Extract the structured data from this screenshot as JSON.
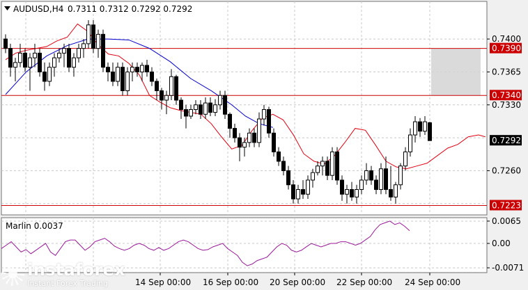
{
  "header": {
    "symbol_timeframe": "AUDUSD,H4",
    "ohlc": "0.7311 0.7312 0.7292 0.7292"
  },
  "indicator": {
    "label": "Marlin 0.0037"
  },
  "logo": {
    "brand": "instaforex",
    "tagline": "Instant Forex Trading"
  },
  "colors": {
    "background": "#ffffff",
    "page": "#f0f0f0",
    "grid": "#c8c8c8",
    "bull_candle": "#ffffff",
    "bear_candle": "#000000",
    "ma_fast": "#e0000f",
    "ma_slow": "#0000cc",
    "level_line": "#cc0000",
    "level_label_bg": "#cc0000",
    "price_label_bg": "#000000",
    "oscillator": "#9a1a9a",
    "target_box": "#d4d4d4"
  },
  "chart_data": [
    {
      "type": "candlestick",
      "title": "AUDUSD,H4",
      "ylim": [
        0.7213,
        0.744
      ],
      "x_tick_labels": [
        "14 Sep 00:00",
        "16 Sep 00:00",
        "20 Sep 00:00",
        "22 Sep 00:00",
        "24 Sep 00:00"
      ],
      "y_tick_labels": [
        "0.7400",
        "0.7365",
        "0.7330",
        "0.7260"
      ],
      "levels": [
        {
          "value": 0.739,
          "label": "0.7390"
        },
        {
          "value": 0.734,
          "label": "0.7340"
        },
        {
          "value": 0.7223,
          "label": "0.7223"
        }
      ],
      "current_price": {
        "value": 0.7292,
        "label": "0.7292"
      },
      "target_zone": {
        "from": 0.734,
        "to": 0.739
      },
      "candles": [
        [
          0.74,
          0.7405,
          0.7385,
          0.739
        ],
        [
          0.739,
          0.7395,
          0.736,
          0.737
        ],
        [
          0.737,
          0.738,
          0.7355,
          0.7375
        ],
        [
          0.7375,
          0.7395,
          0.737,
          0.7385
        ],
        [
          0.7385,
          0.739,
          0.7365,
          0.737
        ],
        [
          0.737,
          0.7385,
          0.7345,
          0.738
        ],
        [
          0.738,
          0.7395,
          0.737,
          0.7385
        ],
        [
          0.7385,
          0.739,
          0.736,
          0.7365
        ],
        [
          0.7365,
          0.7375,
          0.7345,
          0.7355
        ],
        [
          0.7355,
          0.7375,
          0.735,
          0.737
        ],
        [
          0.737,
          0.7385,
          0.736,
          0.738
        ],
        [
          0.738,
          0.739,
          0.7375,
          0.7385
        ],
        [
          0.7385,
          0.7395,
          0.737,
          0.739
        ],
        [
          0.739,
          0.7395,
          0.7365,
          0.737
        ],
        [
          0.737,
          0.7385,
          0.736,
          0.738
        ],
        [
          0.738,
          0.7395,
          0.7375,
          0.739
        ],
        [
          0.739,
          0.74,
          0.738,
          0.7395
        ],
        [
          0.7395,
          0.742,
          0.739,
          0.7415
        ],
        [
          0.7415,
          0.742,
          0.7385,
          0.739
        ],
        [
          0.739,
          0.741,
          0.738,
          0.7405
        ],
        [
          0.7405,
          0.741,
          0.7365,
          0.737
        ],
        [
          0.737,
          0.7375,
          0.7355,
          0.7365
        ],
        [
          0.7365,
          0.7375,
          0.735,
          0.7355
        ],
        [
          0.7355,
          0.7375,
          0.735,
          0.737
        ],
        [
          0.737,
          0.7375,
          0.734,
          0.7345
        ],
        [
          0.7345,
          0.737,
          0.734,
          0.7365
        ],
        [
          0.7365,
          0.7375,
          0.7355,
          0.737
        ],
        [
          0.737,
          0.7375,
          0.736,
          0.7365
        ],
        [
          0.7365,
          0.7375,
          0.7355,
          0.7372
        ],
        [
          0.7372,
          0.7378,
          0.736,
          0.7365
        ],
        [
          0.7365,
          0.737,
          0.735,
          0.7355
        ],
        [
          0.7355,
          0.7358,
          0.7335,
          0.7345
        ],
        [
          0.7345,
          0.7348,
          0.7325,
          0.7335
        ],
        [
          0.7335,
          0.7345,
          0.732,
          0.734
        ],
        [
          0.734,
          0.7368,
          0.7335,
          0.736
        ],
        [
          0.736,
          0.7362,
          0.733,
          0.7335
        ],
        [
          0.7335,
          0.7338,
          0.7315,
          0.7325
        ],
        [
          0.7325,
          0.733,
          0.7305,
          0.7318
        ],
        [
          0.7318,
          0.733,
          0.7315,
          0.7325
        ],
        [
          0.7325,
          0.7335,
          0.732,
          0.733
        ],
        [
          0.733,
          0.7335,
          0.7315,
          0.732
        ],
        [
          0.732,
          0.7338,
          0.7315,
          0.7332
        ],
        [
          0.7332,
          0.7338,
          0.7318,
          0.7322
        ],
        [
          0.7322,
          0.7336,
          0.7318,
          0.733
        ],
        [
          0.733,
          0.7345,
          0.7325,
          0.734
        ],
        [
          0.734,
          0.7345,
          0.7315,
          0.732
        ],
        [
          0.732,
          0.7322,
          0.7295,
          0.7305
        ],
        [
          0.7305,
          0.731,
          0.729,
          0.7295
        ],
        [
          0.7295,
          0.73,
          0.727,
          0.7285
        ],
        [
          0.7285,
          0.7295,
          0.7275,
          0.729
        ],
        [
          0.729,
          0.7305,
          0.7285,
          0.73
        ],
        [
          0.73,
          0.7305,
          0.7285,
          0.729
        ],
        [
          0.729,
          0.7322,
          0.7285,
          0.7315
        ],
        [
          0.7315,
          0.733,
          0.7308,
          0.7325
        ],
        [
          0.7325,
          0.7328,
          0.7295,
          0.73
        ],
        [
          0.73,
          0.7305,
          0.7275,
          0.728
        ],
        [
          0.728,
          0.7285,
          0.7265,
          0.727
        ],
        [
          0.727,
          0.7275,
          0.7255,
          0.726
        ],
        [
          0.726,
          0.7265,
          0.724,
          0.7245
        ],
        [
          0.7245,
          0.725,
          0.7225,
          0.723
        ],
        [
          0.723,
          0.7245,
          0.7225,
          0.724
        ],
        [
          0.724,
          0.725,
          0.723,
          0.7235
        ],
        [
          0.7235,
          0.7255,
          0.723,
          0.725
        ],
        [
          0.725,
          0.7262,
          0.7242,
          0.7258
        ],
        [
          0.7258,
          0.727,
          0.7255,
          0.7265
        ],
        [
          0.7265,
          0.7275,
          0.7255,
          0.727
        ],
        [
          0.727,
          0.7275,
          0.725,
          0.7255
        ],
        [
          0.7255,
          0.7285,
          0.725,
          0.728
        ],
        [
          0.728,
          0.7285,
          0.7245,
          0.725
        ],
        [
          0.725,
          0.7255,
          0.7228,
          0.7235
        ],
        [
          0.7235,
          0.7245,
          0.7225,
          0.724
        ],
        [
          0.724,
          0.7248,
          0.7228,
          0.7232
        ],
        [
          0.7232,
          0.7245,
          0.7225,
          0.724
        ],
        [
          0.724,
          0.7255,
          0.7235,
          0.725
        ],
        [
          0.725,
          0.7268,
          0.7245,
          0.726
        ],
        [
          0.726,
          0.7265,
          0.7245,
          0.725
        ],
        [
          0.725,
          0.7255,
          0.7235,
          0.724
        ],
        [
          0.724,
          0.7268,
          0.7235,
          0.7262
        ],
        [
          0.7262,
          0.7275,
          0.7235,
          0.724
        ],
        [
          0.724,
          0.7265,
          0.7228,
          0.7232
        ],
        [
          0.7232,
          0.7248,
          0.7225,
          0.7245
        ],
        [
          0.7245,
          0.7268,
          0.724,
          0.7265
        ],
        [
          0.7265,
          0.7285,
          0.726,
          0.728
        ],
        [
          0.728,
          0.7305,
          0.7275,
          0.7298
        ],
        [
          0.7298,
          0.7318,
          0.729,
          0.7312
        ],
        [
          0.7312,
          0.7316,
          0.7296,
          0.7302
        ],
        [
          0.7302,
          0.7318,
          0.7298,
          0.7312
        ],
        [
          0.7311,
          0.7312,
          0.7292,
          0.7292
        ]
      ],
      "ma_slow": [
        [
          0,
          0.7341
        ],
        [
          12,
          0.7365
        ],
        [
          24,
          0.7382
        ],
        [
          36,
          0.7393
        ],
        [
          48,
          0.74
        ],
        [
          60,
          0.74
        ],
        [
          72,
          0.7399
        ],
        [
          84,
          0.739
        ],
        [
          96,
          0.7376
        ],
        [
          108,
          0.7358
        ],
        [
          120,
          0.7345
        ],
        [
          132,
          0.733
        ],
        [
          140,
          0.7318
        ],
        [
          148,
          0.731
        ],
        [
          156,
          0.7306
        ]
      ],
      "ma_fast": [
        [
          0,
          0.7378
        ],
        [
          6,
          0.7385
        ],
        [
          12,
          0.7388
        ],
        [
          18,
          0.739
        ],
        [
          24,
          0.7392
        ],
        [
          30,
          0.7398
        ],
        [
          36,
          0.7402
        ],
        [
          42,
          0.7416
        ],
        [
          48,
          0.7408
        ],
        [
          54,
          0.7394
        ],
        [
          60,
          0.7384
        ],
        [
          66,
          0.7382
        ],
        [
          72,
          0.7374
        ],
        [
          78,
          0.7362
        ],
        [
          84,
          0.734
        ],
        [
          90,
          0.7333
        ],
        [
          96,
          0.7327
        ],
        [
          102,
          0.7324
        ],
        [
          108,
          0.7322
        ],
        [
          114,
          0.732
        ],
        [
          120,
          0.731
        ],
        [
          126,
          0.7296
        ],
        [
          132,
          0.7283
        ],
        [
          138,
          0.7287
        ],
        [
          144,
          0.7303
        ],
        [
          150,
          0.7316
        ],
        [
          156,
          0.732
        ],
        [
          162,
          0.7314
        ],
        [
          168,
          0.7298
        ],
        [
          174,
          0.7278
        ],
        [
          180,
          0.727
        ],
        [
          186,
          0.7267
        ],
        [
          192,
          0.7276
        ],
        [
          198,
          0.729
        ],
        [
          204,
          0.7305
        ],
        [
          210,
          0.7303
        ],
        [
          216,
          0.7287
        ],
        [
          222,
          0.727
        ],
        [
          228,
          0.7264
        ],
        [
          234,
          0.7262
        ],
        [
          240,
          0.7265
        ],
        [
          246,
          0.7268
        ],
        [
          252,
          0.7276
        ],
        [
          258,
          0.7284
        ],
        [
          264,
          0.7288
        ],
        [
          270,
          0.7296
        ],
        [
          276,
          0.7298
        ],
        [
          280,
          0.7296
        ]
      ]
    },
    {
      "type": "line",
      "title": "Marlin 0.0037",
      "ylim": [
        -0.0085,
        0.0075
      ],
      "y_tick_labels": [
        "0.0065",
        "0.00",
        "-0.0071"
      ],
      "series": [
        {
          "values": [
            -0.0015,
            -0.0005,
            0.0005,
            -0.001,
            -0.0025,
            -0.0018,
            -0.003,
            -0.002,
            -0.001,
            0.0,
            -0.0025,
            -0.0035,
            -0.0015,
            0.0005,
            0.001,
            0.001,
            -0.0005,
            -0.002,
            -0.001,
            0.0005,
            0.001,
            0.0015,
            0.0005,
            -0.0008,
            -0.0015,
            -0.002,
            -0.0015,
            -0.0005,
            0.0,
            -0.0005,
            -0.0015,
            -0.002,
            -0.0012,
            -0.002,
            -0.0015,
            -0.0005,
            0.0005,
            0.001,
            0.0005,
            -0.0005,
            -0.0015,
            -0.002,
            -0.0018,
            -0.001,
            -0.0005,
            0.0,
            -0.0015,
            -0.0025,
            -0.0035,
            -0.0055,
            -0.0065,
            -0.006,
            -0.005,
            -0.0045,
            -0.004,
            -0.0025,
            -0.001,
            0.0,
            -0.0005,
            -0.002,
            -0.0025,
            -0.002,
            -0.001,
            0.0,
            -0.0005,
            -0.001,
            -0.0005,
            0.0,
            0.0,
            0.0005,
            0.0005,
            0.0,
            -0.0005,
            0.0,
            0.001,
            0.002,
            0.004,
            0.0055,
            0.006,
            0.0065,
            0.0055,
            0.006,
            0.005,
            0.0037
          ]
        }
      ]
    }
  ]
}
